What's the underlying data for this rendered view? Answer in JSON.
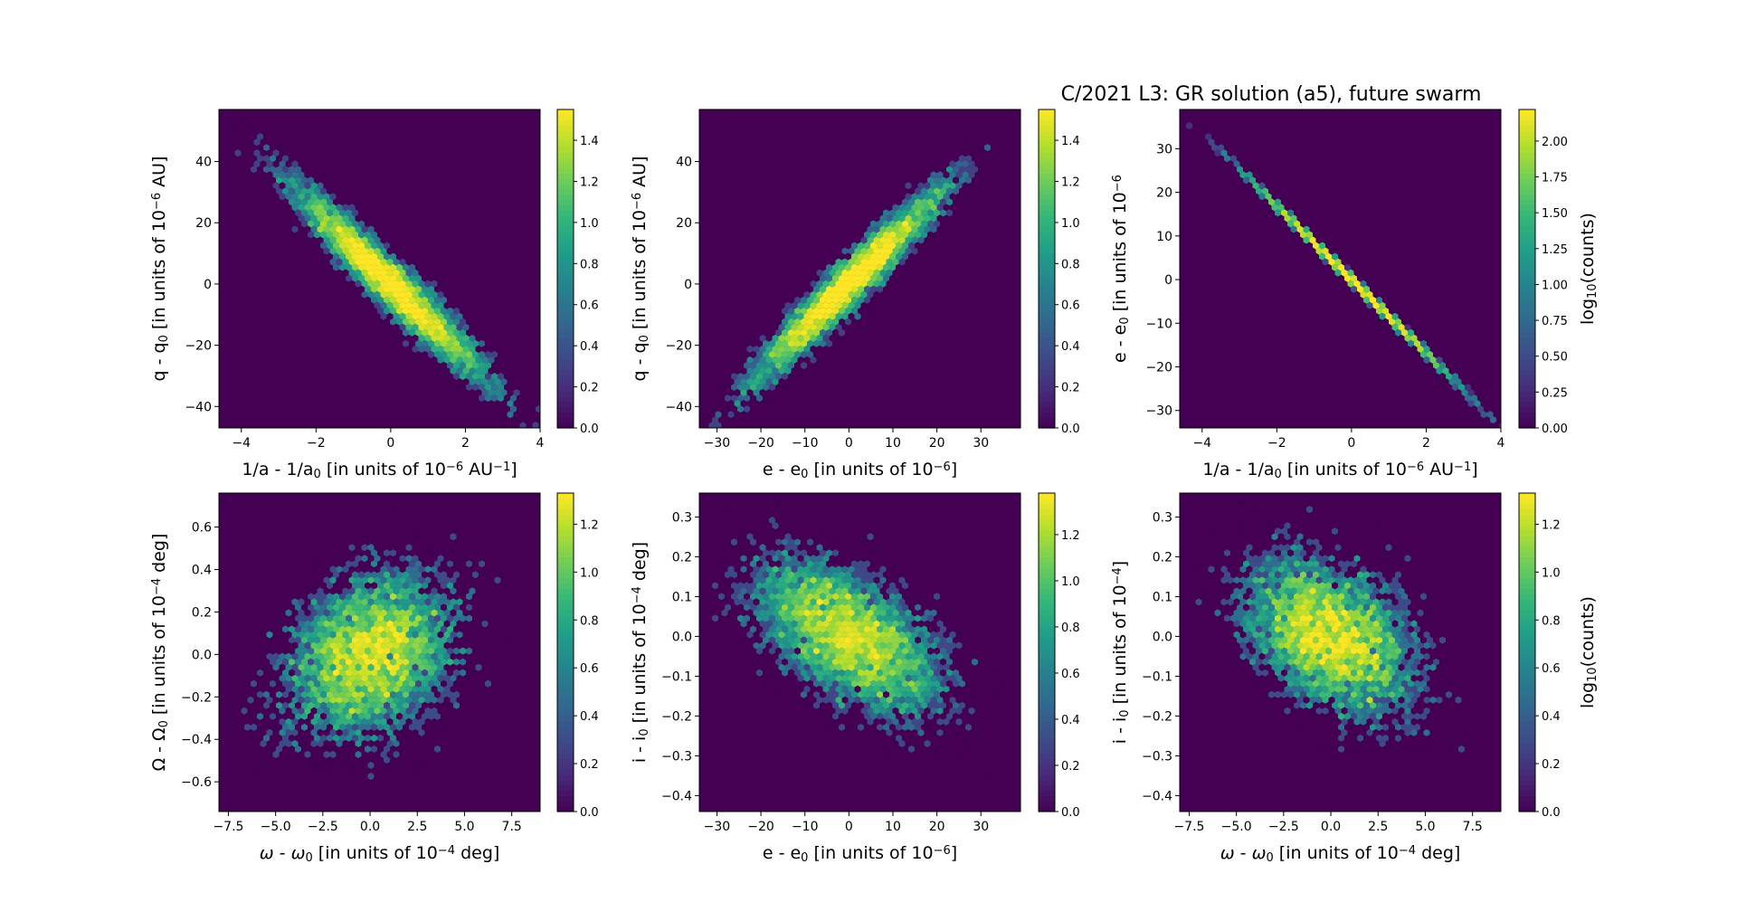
{
  "figure": {
    "title": "C/2021 L3: GR solution (a5), future swarm"
  },
  "chart_data": [
    {
      "type": "heatmap",
      "xlabel": "1/a - 1/a0 [in units of 10^-6 AU^-1]",
      "ylabel": "q - q0 [in units of 10^-6 AU]",
      "xlabel_parts": [
        [
          "1/a - 1/a",
          ""
        ],
        [
          "0",
          "sub"
        ],
        [
          " [in units of 10",
          ""
        ],
        [
          "−6",
          "sup"
        ],
        [
          " AU",
          ""
        ],
        [
          "−1",
          "sup"
        ],
        [
          "]",
          ""
        ]
      ],
      "ylabel_parts": [
        [
          "q - q",
          ""
        ],
        [
          "0",
          "sub"
        ],
        [
          " [in units of 10",
          ""
        ],
        [
          "−6",
          "sup"
        ],
        [
          " AU]",
          ""
        ]
      ],
      "xlim": [
        -4.6,
        4.0
      ],
      "ylim": [
        -47,
        57
      ],
      "xticks": [
        -4,
        -2,
        0,
        2,
        4
      ],
      "yticks": [
        -40,
        -20,
        0,
        20,
        40
      ],
      "distribution": {
        "mean": [
          0,
          0
        ],
        "std": [
          1.3,
          16
        ],
        "corr": -0.96,
        "n": 6000
      },
      "colorbar": {
        "label": "",
        "ticks": [
          0.0,
          0.2,
          0.4,
          0.6,
          0.8,
          1.0,
          1.2,
          1.4
        ],
        "range": [
          0,
          1.55
        ]
      }
    },
    {
      "type": "heatmap",
      "xlabel": "e - e0 [in units of 10^-6]",
      "ylabel": "q - q0 [in units of 10^-6 AU]",
      "xlabel_parts": [
        [
          "e - e",
          ""
        ],
        [
          "0",
          "sub"
        ],
        [
          " [in units of 10",
          ""
        ],
        [
          "−6",
          "sup"
        ],
        [
          "]",
          ""
        ]
      ],
      "ylabel_parts": [
        [
          "q - q",
          ""
        ],
        [
          "0",
          "sub"
        ],
        [
          " [in units of 10",
          ""
        ],
        [
          "−6",
          "sup"
        ],
        [
          " AU]",
          ""
        ]
      ],
      "xlim": [
        -34,
        39
      ],
      "ylim": [
        -47,
        57
      ],
      "xticks": [
        -30,
        -20,
        -10,
        0,
        10,
        20,
        30
      ],
      "yticks": [
        -40,
        -20,
        0,
        20,
        40
      ],
      "distribution": {
        "mean": [
          0,
          0
        ],
        "std": [
          11,
          16
        ],
        "corr": 0.96,
        "n": 6000
      },
      "colorbar": {
        "label": "",
        "ticks": [
          0.0,
          0.2,
          0.4,
          0.6,
          0.8,
          1.0,
          1.2,
          1.4
        ],
        "range": [
          0,
          1.55
        ]
      }
    },
    {
      "type": "heatmap",
      "xlabel": "1/a - 1/a0 [in units of 10^-6 AU^-1]",
      "ylabel": "e - e0 [in units of 10^-6]",
      "xlabel_parts": [
        [
          "1/a - 1/a",
          ""
        ],
        [
          "0",
          "sub"
        ],
        [
          " [in units of 10",
          ""
        ],
        [
          "−6",
          "sup"
        ],
        [
          " AU",
          ""
        ],
        [
          "−1",
          "sup"
        ],
        [
          "]",
          ""
        ]
      ],
      "ylabel_parts": [
        [
          "e - e",
          ""
        ],
        [
          "0",
          "sub"
        ],
        [
          " [in units of 10",
          ""
        ],
        [
          "−6",
          "sup"
        ]
      ],
      "xlim": [
        -4.6,
        4.0
      ],
      "ylim": [
        -34,
        39
      ],
      "xticks": [
        -4,
        -2,
        0,
        2,
        4
      ],
      "yticks": [
        -30,
        -20,
        -10,
        0,
        10,
        20,
        30
      ],
      "distribution": {
        "mean": [
          0,
          0
        ],
        "std": [
          1.3,
          11
        ],
        "corr": -0.9995,
        "n": 6000
      },
      "colorbar": {
        "label": "log10(counts)",
        "ticks": [
          0.0,
          0.25,
          0.5,
          0.75,
          1.0,
          1.25,
          1.5,
          1.75,
          2.0
        ],
        "tick_labels": [
          "0.00",
          "0.25",
          "0.50",
          "0.75",
          "1.00",
          "1.25",
          "1.50",
          "1.75",
          "2.00"
        ],
        "range": [
          0,
          2.22
        ]
      }
    },
    {
      "type": "heatmap",
      "xlabel": "ω - ω0 [in units of 10^-4 deg]",
      "ylabel": "Ω - Ω0 [in units of 10^-4 deg]",
      "xlabel_parts": [
        [
          "ω",
          "it"
        ],
        [
          " - ",
          ""
        ],
        [
          "ω",
          "it"
        ],
        [
          "0",
          "sub"
        ],
        [
          " [in units of 10",
          ""
        ],
        [
          "−4",
          "sup"
        ],
        [
          " deg]",
          ""
        ]
      ],
      "ylabel_parts": [
        [
          "Ω - Ω",
          ""
        ],
        [
          "0",
          "sub"
        ],
        [
          " [in units of 10",
          ""
        ],
        [
          "−4",
          "sup"
        ],
        [
          " deg]",
          ""
        ]
      ],
      "xlim": [
        -8.0,
        9.0
      ],
      "ylim": [
        -0.74,
        0.76
      ],
      "xticks": [
        -7.5,
        -5.0,
        -2.5,
        0.0,
        2.5,
        5.0,
        7.5
      ],
      "yticks": [
        -0.6,
        -0.4,
        -0.2,
        0.0,
        0.2,
        0.4,
        0.6
      ],
      "distribution": {
        "mean": [
          0,
          0
        ],
        "std": [
          2.3,
          0.2
        ],
        "corr": 0.3,
        "n": 6000
      },
      "colorbar": {
        "label": "",
        "ticks": [
          0.0,
          0.2,
          0.4,
          0.6,
          0.8,
          1.0,
          1.2
        ],
        "range": [
          0,
          1.33
        ]
      }
    },
    {
      "type": "heatmap",
      "xlabel": "e - e0 [in units of 10^-6]",
      "ylabel": "i - i0 [in units of 10^-4 deg]",
      "xlabel_parts": [
        [
          "e - e",
          ""
        ],
        [
          "0",
          "sub"
        ],
        [
          " [in units of 10",
          ""
        ],
        [
          "−6",
          "sup"
        ],
        [
          "]",
          ""
        ]
      ],
      "ylabel_parts": [
        [
          "i - i",
          ""
        ],
        [
          "0",
          "sub"
        ],
        [
          " [in units of 10",
          ""
        ],
        [
          "−4",
          "sup"
        ],
        [
          " deg]",
          ""
        ]
      ],
      "xlim": [
        -34,
        39
      ],
      "ylim": [
        -0.44,
        0.36
      ],
      "xticks": [
        -30,
        -20,
        -10,
        0,
        10,
        20,
        30
      ],
      "yticks": [
        -0.4,
        -0.3,
        -0.2,
        -0.1,
        0.0,
        0.1,
        0.2,
        0.3
      ],
      "distribution": {
        "mean": [
          0,
          0
        ],
        "std": [
          11,
          0.1
        ],
        "corr": -0.55,
        "n": 6000
      },
      "colorbar": {
        "label": "",
        "ticks": [
          0.0,
          0.2,
          0.4,
          0.6,
          0.8,
          1.0,
          1.2
        ],
        "range": [
          0,
          1.38
        ]
      }
    },
    {
      "type": "heatmap",
      "xlabel": "ω - ω0 [in units of 10^-4 deg]",
      "ylabel": "i - i0 [in units of 10^-4]",
      "xlabel_parts": [
        [
          "ω",
          "it"
        ],
        [
          " - ",
          ""
        ],
        [
          "ω",
          "it"
        ],
        [
          "0",
          "sub"
        ],
        [
          " [in units of 10",
          ""
        ],
        [
          "−4",
          "sup"
        ],
        [
          " deg]",
          ""
        ]
      ],
      "ylabel_parts": [
        [
          "i - i",
          ""
        ],
        [
          "0",
          "sub"
        ],
        [
          " [in units of 10",
          ""
        ],
        [
          "−4",
          "sup"
        ],
        [
          "]",
          ""
        ]
      ],
      "xlim": [
        -8.0,
        9.0
      ],
      "ylim": [
        -0.44,
        0.36
      ],
      "xticks": [
        -7.5,
        -5.0,
        -2.5,
        0.0,
        2.5,
        5.0,
        7.5
      ],
      "yticks": [
        -0.4,
        -0.3,
        -0.2,
        -0.1,
        0.0,
        0.1,
        0.2,
        0.3
      ],
      "distribution": {
        "mean": [
          0,
          0
        ],
        "std": [
          2.3,
          0.1
        ],
        "corr": -0.4,
        "n": 6000
      },
      "colorbar": {
        "label": "log10(counts)",
        "ticks": [
          0.0,
          0.2,
          0.4,
          0.6,
          0.8,
          1.0,
          1.2
        ],
        "range": [
          0,
          1.33
        ]
      }
    }
  ]
}
